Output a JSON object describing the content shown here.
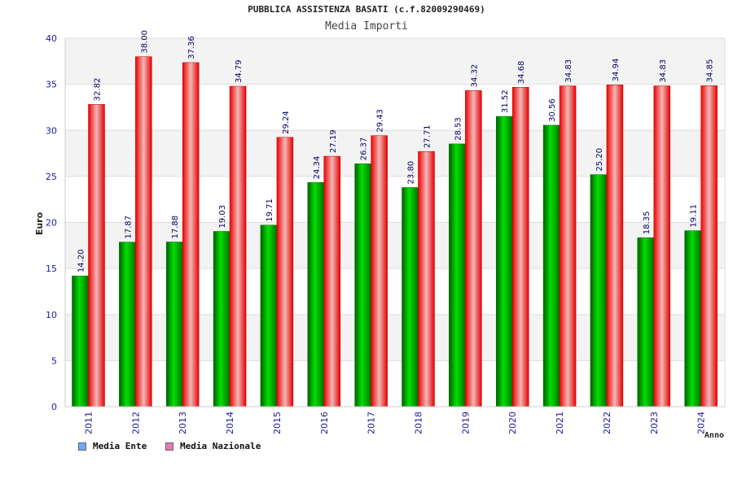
{
  "chart_data": {
    "type": "bar",
    "title": "PUBBLICA ASSISTENZA BASATI (c.f.82009290469)",
    "subtitle": "Media Importi",
    "ylabel": "Euro",
    "xlabel": "Anno",
    "ylim": [
      0,
      40
    ],
    "yticks": [
      0,
      5,
      10,
      15,
      20,
      25,
      30,
      35,
      40
    ],
    "grid": true,
    "legend_position": "bottom-left",
    "categories": [
      "2011",
      "2012",
      "2013",
      "2014",
      "2015",
      "2016",
      "2017",
      "2018",
      "2019",
      "2020",
      "2021",
      "2022",
      "2023",
      "2024"
    ],
    "series": [
      {
        "name": "Media Ente",
        "color": "#00c000",
        "legend_color": "#6fa8ff",
        "values": [
          14.2,
          17.87,
          17.88,
          19.03,
          19.71,
          24.34,
          26.37,
          23.8,
          28.53,
          31.52,
          30.56,
          25.2,
          18.35,
          19.11
        ],
        "labels": [
          "14.20",
          "17.87",
          "17.88",
          "19.03",
          "19.71",
          "24.34",
          "26.37",
          "23.80",
          "28.53",
          "31.52",
          "30.56",
          "25.20",
          "18.35",
          "19.11"
        ]
      },
      {
        "name": "Media Nazionale",
        "color": "#ee0000",
        "legend_color": "#e87ab4",
        "values": [
          32.82,
          38.0,
          37.36,
          34.79,
          29.24,
          27.19,
          29.43,
          27.71,
          34.32,
          34.68,
          34.83,
          34.94,
          34.83,
          34.85
        ],
        "labels": [
          "32.82",
          "38.00",
          "37.36",
          "34.79",
          "29.24",
          "27.19",
          "29.43",
          "27.71",
          "34.32",
          "34.68",
          "34.83",
          "34.94",
          "34.83",
          "34.85"
        ]
      }
    ]
  }
}
